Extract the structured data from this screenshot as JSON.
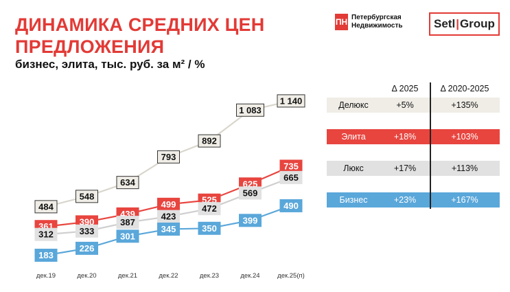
{
  "header": {
    "title": "ДИНАМИКА СРЕДНИХ ЦЕН\nПРЕДЛОЖЕНИЯ",
    "subtitle": "бизнес, элита, тыс. руб. за м² / %"
  },
  "logos": {
    "pn_mark": "ПН",
    "pn_line1": "Петербургская",
    "pn_line2": "Недвижимость",
    "setl_left": "Setl",
    "setl_sep": "|",
    "setl_right": "Group"
  },
  "colors": {
    "accent": "#e23a36",
    "deluxe": "#efede6",
    "elite": "#e8453f",
    "lux": "#e1e1e1",
    "business": "#5aa7da"
  },
  "chart_data": {
    "type": "line",
    "categories": [
      "дек.19",
      "дек.20",
      "дек.21",
      "дек.22",
      "дек.23",
      "дек.24",
      "дек.25(п)"
    ],
    "series": [
      {
        "name": "Делюкс",
        "key": "deluxe",
        "values": [
          484,
          548,
          634,
          793,
          892,
          1083,
          1140
        ],
        "labels": [
          "484",
          "548",
          "634",
          "793",
          "892",
          "1 083",
          "1 140"
        ]
      },
      {
        "name": "Элита",
        "key": "elite",
        "values": [
          361,
          390,
          439,
          499,
          525,
          625,
          735
        ],
        "labels": [
          "361",
          "390",
          "439",
          "499",
          "525",
          "625",
          "735"
        ]
      },
      {
        "name": "Люкс",
        "key": "lux",
        "values": [
          312,
          333,
          387,
          423,
          472,
          569,
          665
        ],
        "labels": [
          "312",
          "333",
          "387",
          "423",
          "472",
          "569",
          "665"
        ]
      },
      {
        "name": "Бизнес",
        "key": "business",
        "values": [
          183,
          226,
          301,
          345,
          350,
          399,
          490
        ],
        "labels": [
          "183",
          "226",
          "301",
          "345",
          "350",
          "399",
          "490"
        ]
      }
    ],
    "grid": false,
    "legend": "table-right"
  },
  "table": {
    "col_a": "Δ 2025",
    "col_b": "Δ 2020-2025",
    "rows": [
      {
        "name": "Делюкс",
        "a": "+5%",
        "b": "+135%",
        "key": "deluxe"
      },
      {
        "name": "Элита",
        "a": "+18%",
        "b": "+103%",
        "key": "elite"
      },
      {
        "name": "Люкс",
        "a": "+17%",
        "b": "+113%",
        "key": "lux"
      },
      {
        "name": "Бизнес",
        "a": "+23%",
        "b": "+167%",
        "key": "business"
      }
    ]
  }
}
